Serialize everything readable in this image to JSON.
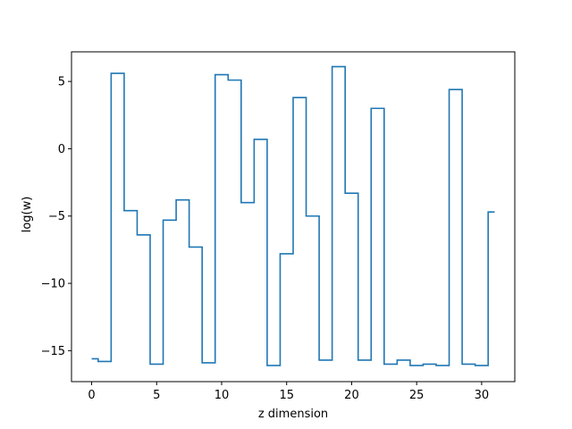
{
  "chart_data": {
    "type": "line",
    "drawstyle": "steps-mid",
    "title": "",
    "xlabel": "z dimension",
    "ylabel": "log(w)",
    "xlim": [
      -1.55,
      32.55
    ],
    "ylim": [
      -17.3,
      7.2
    ],
    "xticks": [
      0,
      5,
      10,
      15,
      20,
      25,
      30
    ],
    "xtick_labels": [
      "0",
      "5",
      "10",
      "15",
      "20",
      "25",
      "30"
    ],
    "yticks": [
      5,
      0,
      -5,
      -10,
      -15
    ],
    "ytick_labels": [
      "5",
      "0",
      "−5",
      "−10",
      "−15"
    ],
    "grid": false,
    "series": [
      {
        "color": "#1f77b4",
        "x": [
          0,
          1,
          2,
          3,
          4,
          5,
          6,
          7,
          8,
          9,
          10,
          11,
          12,
          13,
          14,
          15,
          16,
          17,
          18,
          19,
          20,
          21,
          22,
          23,
          24,
          25,
          26,
          27,
          28,
          29,
          30,
          31
        ],
        "y": [
          -15.6,
          -15.8,
          5.6,
          -4.6,
          -6.4,
          -16.0,
          -5.3,
          -3.8,
          -7.3,
          -15.9,
          5.5,
          5.1,
          -4.0,
          0.7,
          -16.1,
          -7.8,
          3.8,
          -5.0,
          -15.7,
          6.1,
          -3.3,
          -15.7,
          3.0,
          -16.0,
          -15.7,
          -16.1,
          -16.0,
          -16.1,
          4.4,
          -16.0,
          -16.1,
          -4.7
        ]
      }
    ]
  }
}
